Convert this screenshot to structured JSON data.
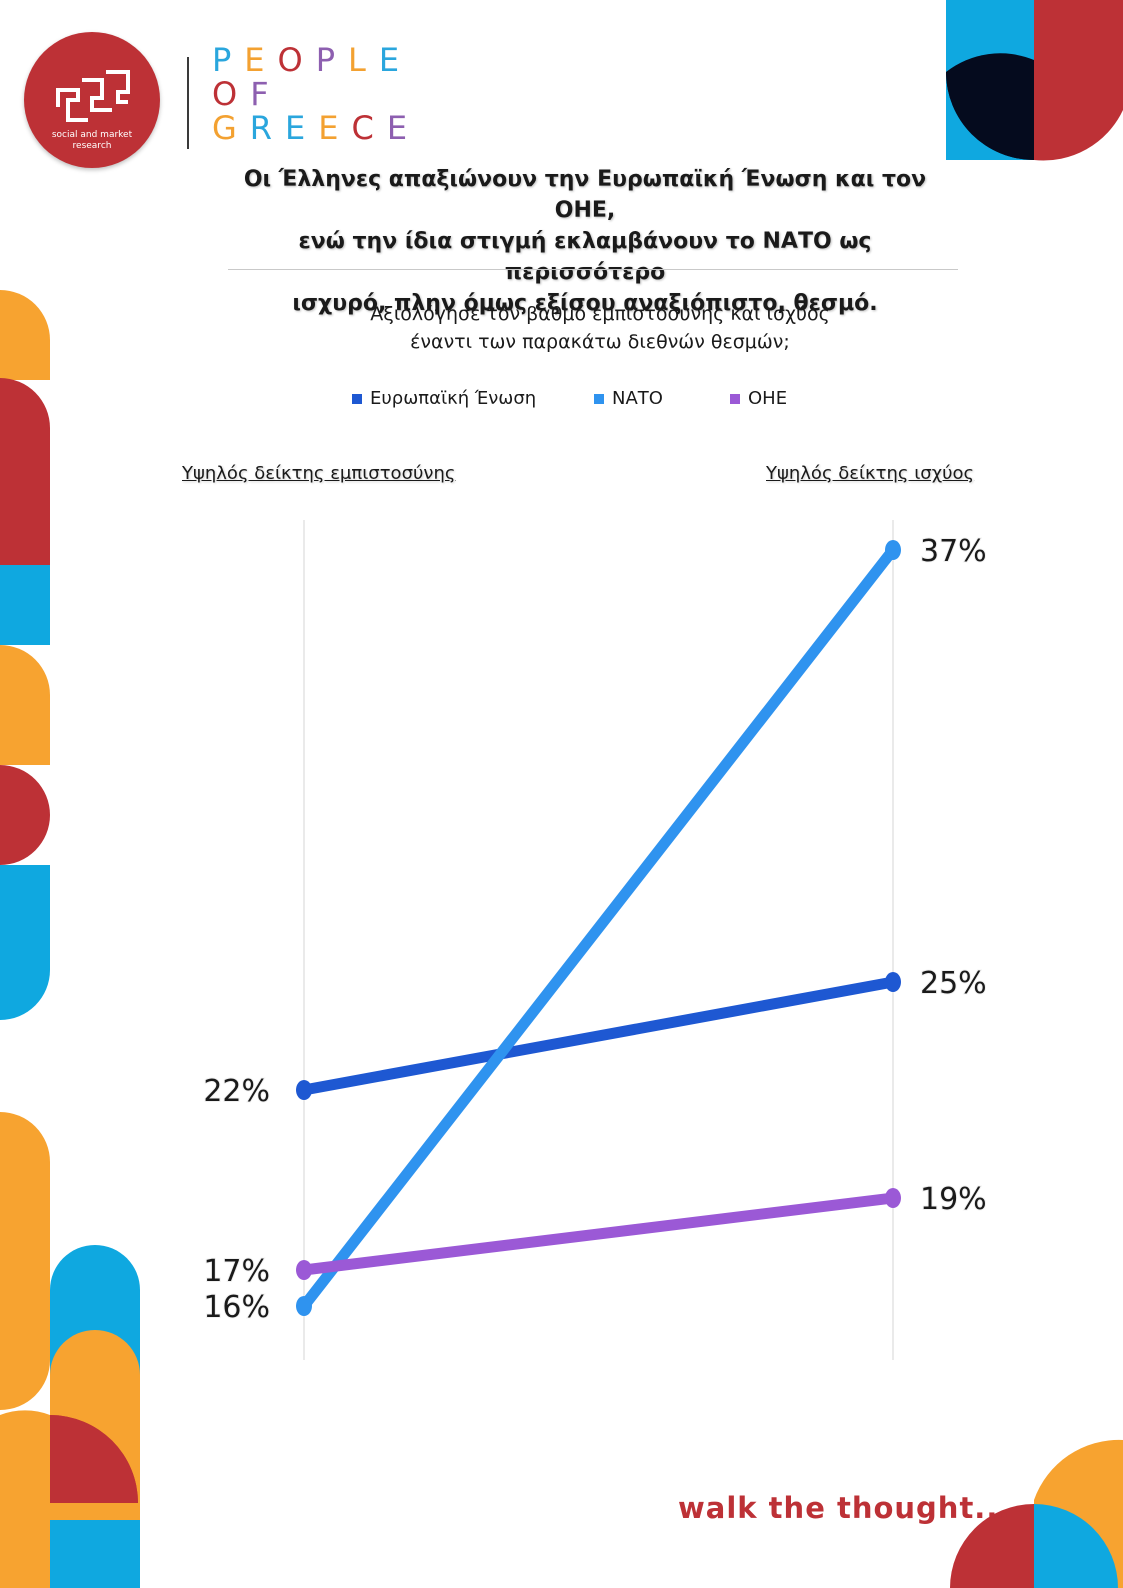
{
  "logo": {
    "subtitle_line1": "social and market",
    "subtitle_line2": "research",
    "brand_lines": [
      "PEOPLE",
      "OF",
      "GREECE"
    ],
    "brand_colors": [
      "#2aa6dd",
      "#f3a131",
      "#bd3136",
      "#8d5fb0",
      "#f3a131",
      "#2aa6dd"
    ]
  },
  "title": {
    "line1": "Οι Έλληνες απαξιώνουν την Ευρωπαϊκή Ένωση και τον ΟΗΕ,",
    "line2": "ενώ την ίδια στιγμή εκλαμβάνουν το ΝΑΤΟ ως περισσότερο",
    "line3": "ισχυρό, πλην όμως εξίσου αναξιόπιστο, θεσμό."
  },
  "question": {
    "line1": "Αξιολόγησε τον βαθμό εμπιστοσύνης και ισχύος",
    "line2": "έναντι των παρακάτω διεθνών θεσμών;"
  },
  "chart_data": {
    "type": "line",
    "categories": [
      "Υψηλός δείκτης εμπιστοσύνης",
      "Υψηλός δείκτης ισχύος"
    ],
    "series": [
      {
        "name": "Ευρωπαϊκή Ένωση",
        "values": [
          22,
          25
        ],
        "labels": [
          "22%",
          "25%"
        ],
        "color": "#1e58d2"
      },
      {
        "name": "ΝΑΤΟ",
        "values": [
          16,
          37
        ],
        "labels": [
          "16%",
          "37%"
        ],
        "color": "#2f93ef"
      },
      {
        "name": "ΟΗΕ",
        "values": [
          17,
          19
        ],
        "labels": [
          "17%",
          "19%"
        ],
        "color": "#9b59d6"
      }
    ],
    "legend": "top",
    "ylim": [
      14,
      38
    ],
    "grid": false
  },
  "tagline": "walk the thought...",
  "colors": {
    "red": "#bd3136",
    "blue": "#0fa8e0",
    "orange": "#f7a330",
    "navy": "#050b1e"
  }
}
